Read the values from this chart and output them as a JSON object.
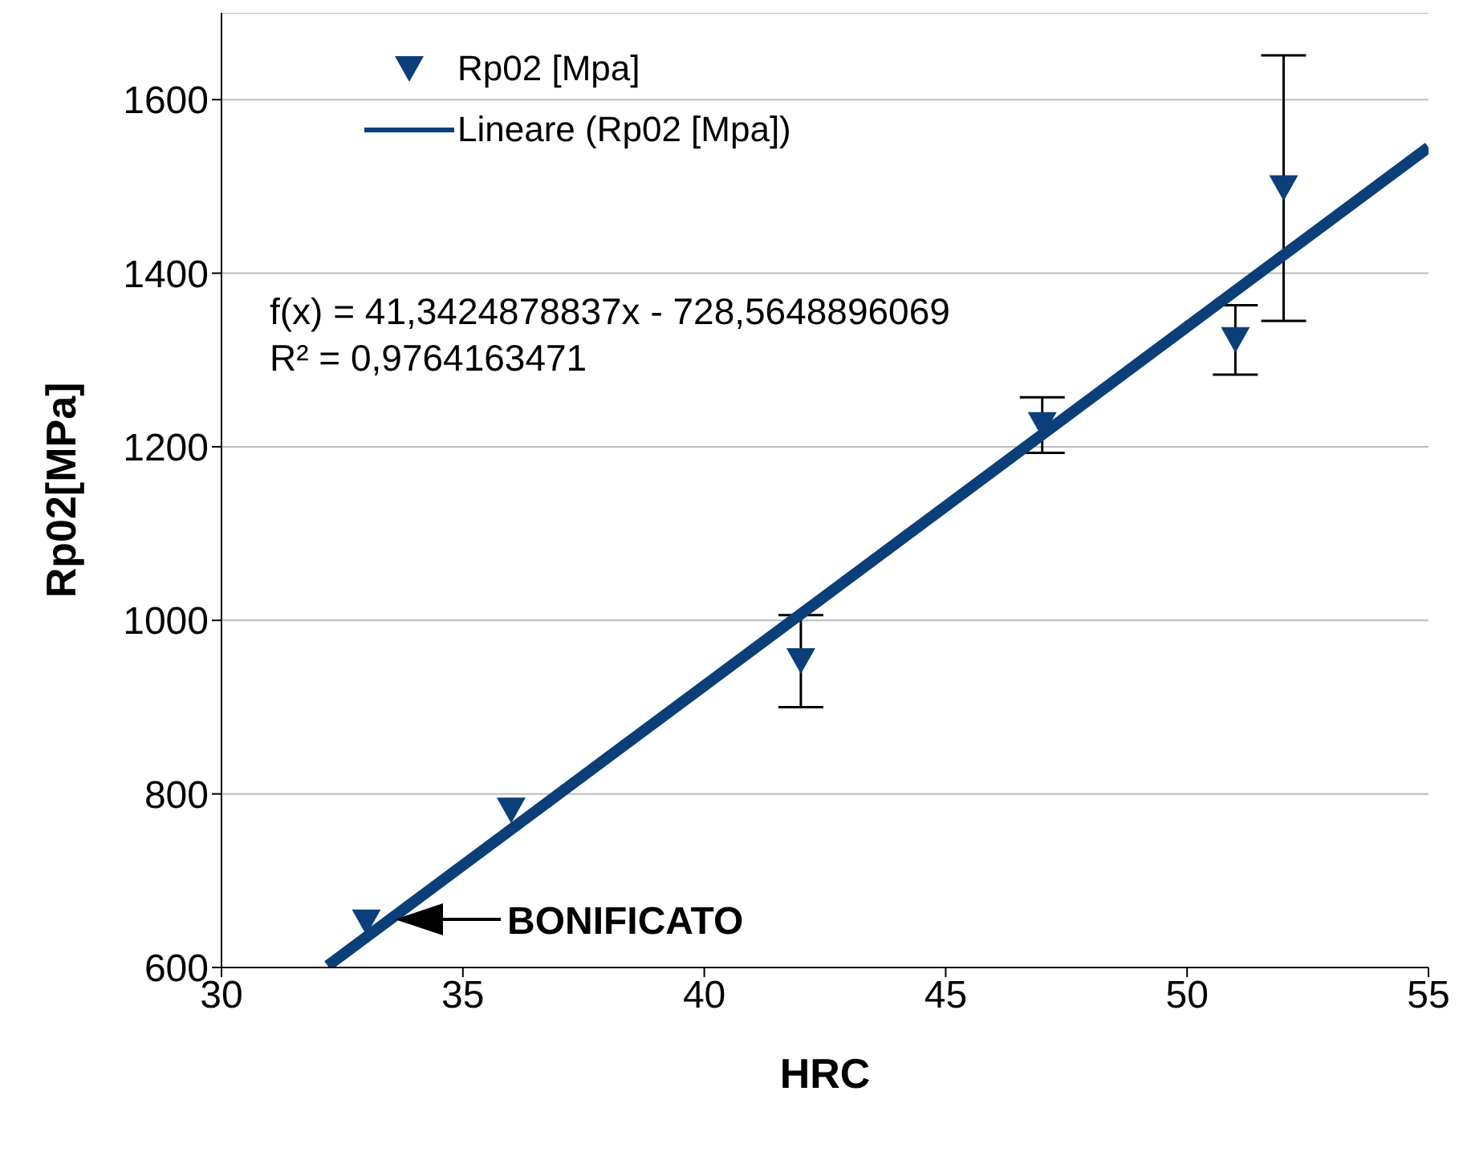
{
  "chart_data": {
    "type": "scatter",
    "xlabel": "HRC",
    "ylabel": "Rp02[MPa]",
    "xlim": [
      30,
      55
    ],
    "xticks": [
      30,
      35,
      40,
      45,
      50,
      55
    ],
    "ylim": [
      600,
      1700
    ],
    "yticks": [
      600,
      800,
      1000,
      1200,
      1400,
      1600
    ],
    "grid": "y",
    "legend": "top left",
    "series": [
      {
        "name": "Rp02 [Mpa]",
        "color": "#0b3f7a",
        "marker": "triangle",
        "x": [
          33,
          36,
          42,
          47,
          51,
          52
        ],
        "values": [
          652,
          781,
          953,
          1225,
          1323,
          1498
        ],
        "errors": [
          null,
          null,
          53,
          32,
          40,
          153
        ]
      },
      {
        "name": "Lineare (Rp02 [Mpa])",
        "type": "line",
        "color": "#0b3f7a",
        "marker": "none",
        "x": [
          32.2,
          55
        ],
        "values": [
          602,
          1545
        ]
      }
    ],
    "annotations": [
      "f(x) = 41,3424878837x - 728,5648896069",
      "R² = 0,9764163471",
      "BONIFICATO"
    ]
  }
}
